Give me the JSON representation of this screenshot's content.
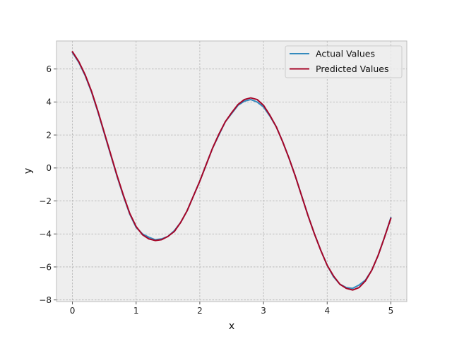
{
  "chart_data": {
    "type": "line",
    "title": "",
    "xlabel": "x",
    "ylabel": "y",
    "xlim": [
      -0.25,
      5.25
    ],
    "ylim": [
      -8.1,
      7.7
    ],
    "xticks": [
      0,
      1,
      2,
      3,
      4,
      5
    ],
    "yticks": [
      -8,
      -6,
      -4,
      -2,
      0,
      2,
      4,
      6
    ],
    "xtick_labels": [
      "0",
      "1",
      "2",
      "3",
      "4",
      "5"
    ],
    "ytick_labels": [
      "−8",
      "−6",
      "−4",
      "−2",
      "0",
      "2",
      "4",
      "6"
    ],
    "grid": true,
    "legend_position": "top-right",
    "series": [
      {
        "name": "Actual Values",
        "color": "#348abd",
        "x": [
          0.0,
          0.1,
          0.2,
          0.3,
          0.4,
          0.5,
          0.6,
          0.7,
          0.8,
          0.9,
          1.0,
          1.1,
          1.2,
          1.3,
          1.4,
          1.5,
          1.6,
          1.7,
          1.8,
          1.9,
          2.0,
          2.1,
          2.2,
          2.3,
          2.4,
          2.5,
          2.6,
          2.7,
          2.8,
          2.9,
          3.0,
          3.1,
          3.2,
          3.3,
          3.4,
          3.5,
          3.6,
          3.7,
          3.8,
          3.9,
          4.0,
          4.1,
          4.2,
          4.3,
          4.4,
          4.5,
          4.6,
          4.7,
          4.8,
          4.9,
          5.0
        ],
        "y": [
          7.0,
          6.4,
          5.6,
          4.6,
          3.4,
          2.1,
          0.8,
          -0.5,
          -1.7,
          -2.8,
          -3.6,
          -4.0,
          -4.2,
          -4.35,
          -4.3,
          -4.15,
          -3.8,
          -3.3,
          -2.6,
          -1.7,
          -0.8,
          0.2,
          1.2,
          2.0,
          2.8,
          3.3,
          3.8,
          4.05,
          4.15,
          4.0,
          3.7,
          3.15,
          2.5,
          1.6,
          0.6,
          -0.5,
          -1.7,
          -2.9,
          -4.0,
          -5.0,
          -5.9,
          -6.6,
          -7.05,
          -7.25,
          -7.3,
          -7.1,
          -6.8,
          -6.2,
          -5.3,
          -4.2,
          -3.0
        ]
      },
      {
        "name": "Predicted Values",
        "color": "#a60628",
        "x": [
          0.0,
          0.1,
          0.2,
          0.3,
          0.4,
          0.5,
          0.6,
          0.7,
          0.8,
          0.9,
          1.0,
          1.1,
          1.2,
          1.3,
          1.4,
          1.5,
          1.6,
          1.7,
          1.8,
          1.9,
          2.0,
          2.1,
          2.2,
          2.3,
          2.4,
          2.5,
          2.6,
          2.7,
          2.8,
          2.9,
          3.0,
          3.1,
          3.2,
          3.3,
          3.4,
          3.5,
          3.6,
          3.7,
          3.8,
          3.9,
          4.0,
          4.1,
          4.2,
          4.3,
          4.4,
          4.5,
          4.6,
          4.7,
          4.8,
          4.9,
          5.0
        ],
        "y": [
          7.05,
          6.45,
          5.65,
          4.65,
          3.45,
          2.15,
          0.85,
          -0.45,
          -1.65,
          -2.75,
          -3.55,
          -4.05,
          -4.3,
          -4.4,
          -4.35,
          -4.15,
          -3.85,
          -3.3,
          -2.6,
          -1.7,
          -0.8,
          0.2,
          1.2,
          2.05,
          2.8,
          3.35,
          3.85,
          4.15,
          4.25,
          4.15,
          3.8,
          3.2,
          2.5,
          1.6,
          0.6,
          -0.5,
          -1.7,
          -2.9,
          -4.0,
          -5.0,
          -5.9,
          -6.55,
          -7.05,
          -7.3,
          -7.4,
          -7.25,
          -6.85,
          -6.2,
          -5.3,
          -4.2,
          -3.05
        ]
      }
    ]
  }
}
